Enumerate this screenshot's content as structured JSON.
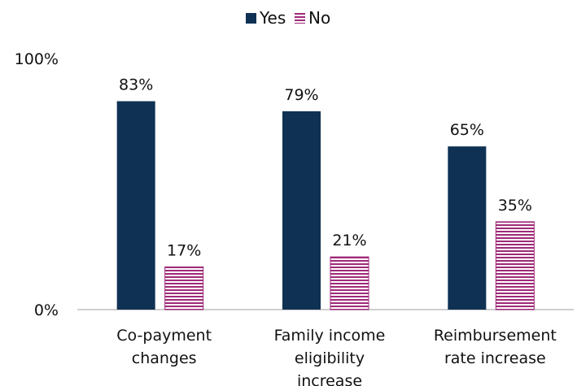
{
  "chart_data": {
    "type": "bar",
    "categories": [
      [
        "Co-payment",
        "changes"
      ],
      [
        "Family income",
        "eligibility",
        "increase"
      ],
      [
        "Reimbursement",
        "rate increase"
      ]
    ],
    "series": [
      {
        "name": "Yes",
        "values": [
          83,
          79,
          65
        ],
        "labels": [
          "83%",
          "79%",
          "65%"
        ],
        "color": "#0f3154",
        "pattern": "solid"
      },
      {
        "name": "No",
        "values": [
          17,
          21,
          35
        ],
        "labels": [
          "17%",
          "21%",
          "35%"
        ],
        "color": "#9e2a78",
        "pattern": "horizontal-stripes"
      }
    ],
    "y_ticks": [
      {
        "value": 0,
        "label": "0%"
      },
      {
        "value": 100,
        "label": "100%"
      }
    ],
    "ylim": [
      0,
      100
    ],
    "legend": "top-center",
    "grid": false
  }
}
